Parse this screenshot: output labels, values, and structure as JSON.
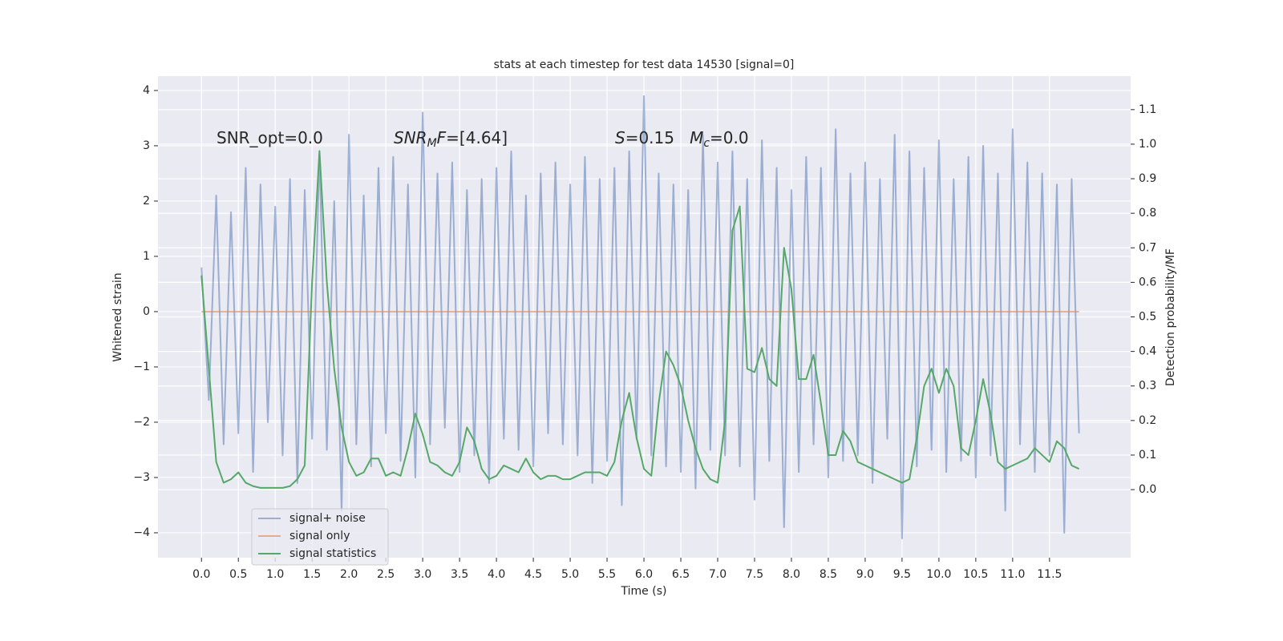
{
  "chart_data": {
    "type": "line",
    "title": "stats at each timestep for test data 14530 [signal=0]",
    "xlabel": "Time (s)",
    "ylabel": "Whitened strain",
    "y2label": "Detection probability/MF",
    "annotations": [
      [
        {
          "text": "SNR_opt=0.0"
        }
      ],
      [
        {
          "text": "SNR",
          "italic": true
        },
        {
          "text": "M",
          "italic": true,
          "sub": true
        },
        {
          "text": "F",
          "italic": true
        },
        {
          "text": "=[4.64]"
        }
      ],
      [
        {
          "text": "S",
          "italic": true
        },
        {
          "text": "=0.15   "
        },
        {
          "text": "M",
          "italic": true
        },
        {
          "text": "c",
          "italic": true,
          "sub": true
        },
        {
          "text": "=0.0"
        }
      ]
    ],
    "x": [
      0,
      0.1,
      0.2,
      0.3,
      0.4,
      0.5,
      0.6,
      0.7,
      0.8,
      0.9,
      1,
      1.1,
      1.2,
      1.3,
      1.4,
      1.5,
      1.6,
      1.7,
      1.8,
      1.9,
      2,
      2.1,
      2.2,
      2.3,
      2.4,
      2.5,
      2.6,
      2.7,
      2.8,
      2.9,
      3,
      3.1,
      3.2,
      3.3,
      3.4,
      3.5,
      3.6,
      3.7,
      3.8,
      3.9,
      4,
      4.1,
      4.2,
      4.3,
      4.4,
      4.5,
      4.6,
      4.7,
      4.8,
      4.9,
      5,
      5.1,
      5.2,
      5.3,
      5.4,
      5.5,
      5.6,
      5.7,
      5.8,
      5.9,
      6,
      6.1,
      6.2,
      6.3,
      6.4,
      6.5,
      6.6,
      6.7,
      6.8,
      6.9,
      7,
      7.1,
      7.2,
      7.3,
      7.4,
      7.5,
      7.6,
      7.7,
      7.8,
      7.9,
      8,
      8.1,
      8.2,
      8.3,
      8.4,
      8.5,
      8.6,
      8.7,
      8.8,
      8.9,
      9,
      9.1,
      9.2,
      9.3,
      9.4,
      9.5,
      9.6,
      9.7,
      9.8,
      9.9,
      10,
      10.1,
      10.2,
      10.3,
      10.4,
      10.5,
      10.6,
      10.7,
      10.8,
      10.9,
      11,
      11.1,
      11.2,
      11.3,
      11.4,
      11.5,
      11.6,
      11.7,
      11.8,
      11.9
    ],
    "series": [
      {
        "name": "signal+ noise",
        "color": "#4c72b0",
        "opacity": 0.5,
        "values": [
          0.8,
          -1.6,
          2.1,
          -2.4,
          1.8,
          -2.2,
          2.6,
          -2.9,
          2.3,
          -2.0,
          1.9,
          -2.6,
          2.4,
          -3.1,
          2.2,
          -2.3,
          2.9,
          -2.5,
          2.0,
          -3.6,
          3.2,
          -2.4,
          2.1,
          -2.8,
          2.6,
          -2.2,
          2.8,
          -2.7,
          2.3,
          -3.0,
          3.6,
          -2.4,
          2.5,
          -2.1,
          2.7,
          -2.9,
          2.2,
          -2.6,
          2.4,
          -3.1,
          2.6,
          -2.3,
          2.9,
          -2.5,
          2.1,
          -2.8,
          2.5,
          -2.2,
          2.7,
          -2.4,
          2.3,
          -2.6,
          2.8,
          -3.1,
          2.4,
          -2.7,
          2.6,
          -3.5,
          2.9,
          -2.3,
          3.9,
          -2.6,
          2.5,
          -2.8,
          2.3,
          -2.9,
          2.2,
          -3.2,
          3.2,
          -2.5,
          2.7,
          -2.6,
          2.9,
          -2.8,
          2.4,
          -3.4,
          3.1,
          -2.7,
          2.6,
          -3.9,
          2.2,
          -2.9,
          2.8,
          -2.4,
          2.6,
          -3.0,
          3.3,
          -2.7,
          2.5,
          -2.6,
          2.7,
          -3.1,
          2.4,
          -2.3,
          3.2,
          -4.1,
          2.9,
          -2.8,
          2.6,
          -2.5,
          3.1,
          -2.9,
          2.4,
          -2.7,
          2.8,
          -3.0,
          3.0,
          -2.6,
          2.5,
          -3.6,
          3.3,
          -2.4,
          2.7,
          -2.9,
          2.5,
          -2.6,
          2.3,
          -4.0,
          2.4,
          -2.2
        ]
      },
      {
        "name": "signal only",
        "color": "#dd8452",
        "opacity": 0.6,
        "x": [
          0,
          11.9
        ],
        "values": [
          0,
          0
        ]
      },
      {
        "name": "signal statistics",
        "color": "#55a868",
        "opacity": 1,
        "axis": "y2",
        "values": [
          0.62,
          0.35,
          0.08,
          0.02,
          0.03,
          0.05,
          0.02,
          0.01,
          0.005,
          0.005,
          0.005,
          0.005,
          0.01,
          0.03,
          0.07,
          0.6,
          0.98,
          0.6,
          0.35,
          0.18,
          0.08,
          0.04,
          0.05,
          0.09,
          0.09,
          0.04,
          0.05,
          0.04,
          0.12,
          0.22,
          0.16,
          0.08,
          0.07,
          0.05,
          0.04,
          0.08,
          0.18,
          0.14,
          0.06,
          0.03,
          0.04,
          0.07,
          0.06,
          0.05,
          0.09,
          0.05,
          0.03,
          0.04,
          0.04,
          0.03,
          0.03,
          0.04,
          0.05,
          0.05,
          0.05,
          0.04,
          0.08,
          0.2,
          0.28,
          0.15,
          0.06,
          0.04,
          0.25,
          0.4,
          0.36,
          0.3,
          0.2,
          0.12,
          0.06,
          0.03,
          0.02,
          0.2,
          0.75,
          0.82,
          0.35,
          0.34,
          0.41,
          0.32,
          0.3,
          0.7,
          0.58,
          0.32,
          0.32,
          0.39,
          0.25,
          0.1,
          0.1,
          0.17,
          0.14,
          0.08,
          0.07,
          0.06,
          0.05,
          0.04,
          0.03,
          0.02,
          0.03,
          0.15,
          0.3,
          0.35,
          0.28,
          0.35,
          0.3,
          0.12,
          0.1,
          0.2,
          0.32,
          0.22,
          0.08,
          0.06,
          0.07,
          0.08,
          0.09,
          0.12,
          0.1,
          0.08,
          0.14,
          0.12,
          0.07,
          0.06
        ]
      }
    ],
    "xlim": [
      -0.59,
      12.6
    ],
    "ylim": [
      -4.45,
      4.26
    ],
    "y2lim": [
      -0.197,
      1.197
    ],
    "xticks": [
      {
        "value": 0,
        "label": "0.0"
      },
      0.5,
      {
        "value": 1,
        "label": "1.0"
      },
      1.5,
      {
        "value": 2,
        "label": "2.0"
      },
      2.5,
      {
        "value": 3,
        "label": "3.0"
      },
      3.5,
      {
        "value": 4,
        "label": "4.0"
      },
      4.5,
      {
        "value": 5,
        "label": "5.0"
      },
      5.5,
      {
        "value": 6,
        "label": "6.0"
      },
      6.5,
      {
        "value": 7,
        "label": "7.0"
      },
      7.5,
      {
        "value": 8,
        "label": "8.0"
      },
      8.5,
      {
        "value": 9,
        "label": "9.0"
      },
      9.5,
      {
        "value": 10,
        "label": "10.0"
      },
      10.5,
      {
        "value": 11,
        "label": "11.0"
      },
      11.5
    ],
    "yticks": [
      {
        "value": -4,
        "label": "−4"
      },
      {
        "value": -3,
        "label": "−3"
      },
      {
        "value": -2,
        "label": "−2"
      },
      {
        "value": -1,
        "label": "−1"
      },
      0,
      1,
      2,
      3,
      4
    ],
    "y2ticks": [
      {
        "value": 0,
        "label": "0.0"
      },
      0.1,
      0.2,
      0.3,
      0.4,
      0.5,
      0.6,
      0.7,
      0.8,
      0.9,
      {
        "value": 1,
        "label": "1.0"
      },
      1.1
    ],
    "grid": true,
    "background": "#eaeaf2",
    "legend": "lower left"
  }
}
